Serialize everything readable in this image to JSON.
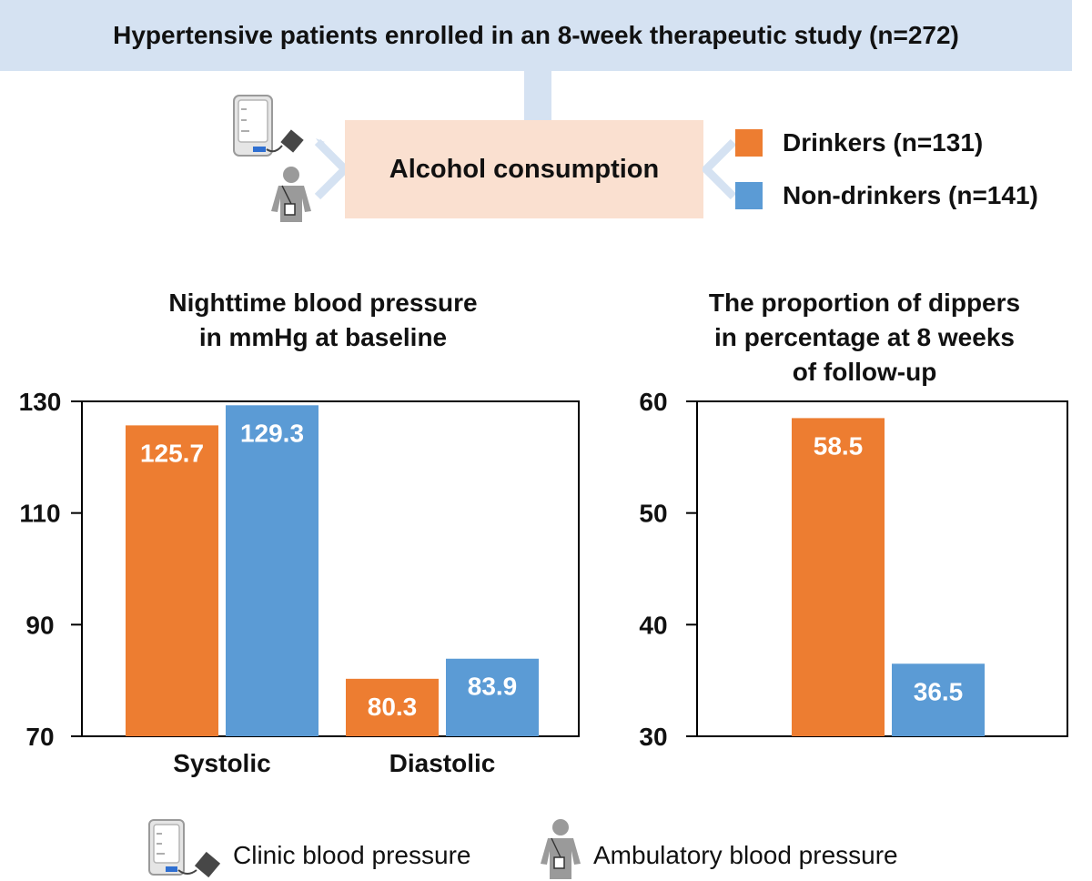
{
  "header": {
    "title": "Hypertensive patients enrolled in an 8-week therapeutic study (n=272)"
  },
  "exposure": {
    "label": "Alcohol consumption"
  },
  "groups": [
    {
      "label": "Drinkers (n=131)",
      "color": "#ed7d31"
    },
    {
      "label": "Non-drinkers (n=141)",
      "color": "#5b9bd5"
    }
  ],
  "bottom_legend": {
    "clinic_label": "Clinic blood pressure",
    "ambulatory_label": "Ambulatory blood pressure",
    "clinic_icon": "blood-pressure-monitor-icon",
    "ambulatory_icon": "person-with-ambulatory-monitor-icon"
  },
  "colors": {
    "drinkers": "#ed7d31",
    "non_drinkers": "#5b9bd5",
    "banner": "#d5e2f2",
    "exposure_box": "#fae0d0"
  },
  "chart_data": [
    {
      "type": "bar",
      "title_lines": [
        "Nighttime blood pressure",
        "in mmHg at baseline"
      ],
      "categories": [
        "Systolic",
        "Diastolic"
      ],
      "series": [
        {
          "name": "Drinkers (n=131)",
          "values": [
            125.7,
            80.3
          ]
        },
        {
          "name": "Non-drinkers (n=141)",
          "values": [
            129.3,
            83.9
          ]
        }
      ],
      "ylim": [
        70,
        130
      ],
      "yticks": [
        70,
        90,
        110,
        130
      ],
      "xlabel": "",
      "ylabel": "",
      "grid": false,
      "data_labels": [
        "125.7",
        "129.3",
        "80.3",
        "83.9"
      ]
    },
    {
      "type": "bar",
      "title_lines": [
        "The proportion of dippers",
        "in percentage at 8 weeks",
        "of follow-up"
      ],
      "categories": [
        ""
      ],
      "series": [
        {
          "name": "Drinkers (n=131)",
          "values": [
            58.5
          ]
        },
        {
          "name": "Non-drinkers (n=141)",
          "values": [
            36.5
          ]
        }
      ],
      "ylim": [
        30,
        60
      ],
      "yticks": [
        30,
        40,
        50,
        60
      ],
      "xlabel": "",
      "ylabel": "",
      "grid": false,
      "data_labels": [
        "58.5",
        "36.5"
      ]
    }
  ]
}
